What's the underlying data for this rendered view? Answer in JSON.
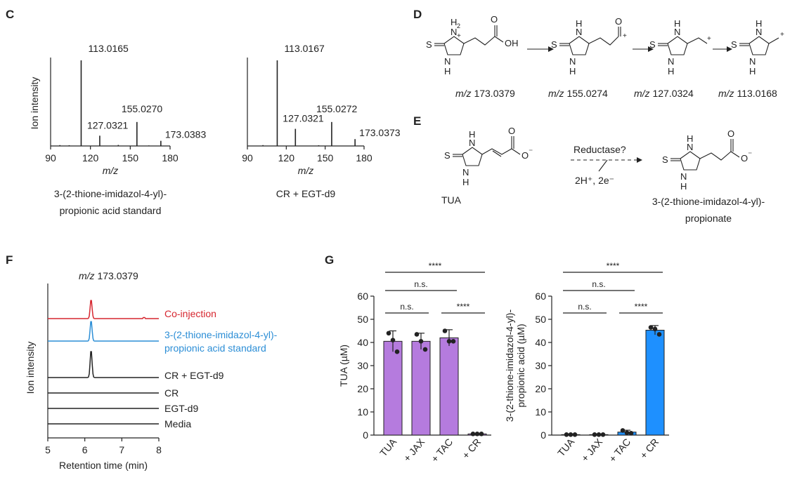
{
  "panels": {
    "C": "C",
    "D": "D",
    "E": "E",
    "F": "F",
    "G": "G"
  },
  "colors": {
    "red": "#d6262f",
    "blue": "#2c8ed6",
    "purple": "#b57bde",
    "bright_blue": "#1e90ff",
    "black": "#222222"
  },
  "chart_data": [
    {
      "type": "bar",
      "id": "spectrum-standard",
      "ylabel": "Ion intensity",
      "xlabel": "m/z",
      "xlim": [
        90,
        180
      ],
      "xticks": [
        90,
        120,
        150,
        180
      ],
      "caption": [
        "3-(2-thione-imidazol-4-yl)-",
        "propionic acid standard"
      ],
      "peaks": [
        {
          "x": 113.0165,
          "y": 1.0,
          "label": "113.0165"
        },
        {
          "x": 127.0321,
          "y": 0.12,
          "label": "127.0321"
        },
        {
          "x": 155.027,
          "y": 0.28,
          "label": "155.0270"
        },
        {
          "x": 173.0383,
          "y": 0.06,
          "label": "173.0383"
        },
        {
          "x": 97,
          "y": 0.01,
          "label": ""
        },
        {
          "x": 104,
          "y": 0.008,
          "label": ""
        },
        {
          "x": 141,
          "y": 0.012,
          "label": ""
        },
        {
          "x": 164,
          "y": 0.006,
          "label": ""
        }
      ]
    },
    {
      "type": "bar",
      "id": "spectrum-cr",
      "ylabel": "",
      "xlabel": "m/z",
      "xlim": [
        90,
        180
      ],
      "xticks": [
        90,
        120,
        150,
        180
      ],
      "caption": [
        "CR + EGT-d9"
      ],
      "peaks": [
        {
          "x": 113.0167,
          "y": 1.0,
          "label": "113.0167"
        },
        {
          "x": 127.0321,
          "y": 0.2,
          "label": "127.0321"
        },
        {
          "x": 155.0272,
          "y": 0.28,
          "label": "155.0272"
        },
        {
          "x": 173.0373,
          "y": 0.08,
          "label": "173.0373"
        },
        {
          "x": 102,
          "y": 0.01,
          "label": ""
        },
        {
          "x": 145,
          "y": 0.008,
          "label": ""
        }
      ]
    },
    {
      "type": "line",
      "id": "chromatogram",
      "title": "m/z 173.0379",
      "ylabel": "Ion intensity",
      "xlabel": "Retention time (min)",
      "xlim": [
        5,
        8
      ],
      "xticks": [
        5,
        6,
        7,
        8
      ],
      "traces": [
        {
          "name": "Co-injection",
          "color": "#d6262f",
          "peak_rt": 6.17,
          "peak_height": 0.7
        },
        {
          "name": "3-(2-thione-imidazol-4-yl)-\npropionic acid standard",
          "color": "#2c8ed6",
          "peak_rt": 6.17,
          "peak_height": 0.75
        },
        {
          "name": "CR + EGT-d9",
          "color": "#222222",
          "peak_rt": 6.17,
          "peak_height": 1.0
        },
        {
          "name": "CR",
          "color": "#222222",
          "peak_rt": null,
          "peak_height": 0
        },
        {
          "name": "EGT-d9",
          "color": "#222222",
          "peak_rt": null,
          "peak_height": 0
        },
        {
          "name": "Media",
          "color": "#222222",
          "peak_rt": null,
          "peak_height": 0
        }
      ]
    },
    {
      "type": "bar",
      "id": "tua-bar",
      "ylabel": "TUA (µM)",
      "ylim": [
        0,
        60
      ],
      "yticks": [
        0,
        10,
        20,
        30,
        40,
        50,
        60
      ],
      "categories": [
        "TUA",
        "+ JAX",
        "+ TAC",
        "+ CR"
      ],
      "values": [
        40.5,
        40.5,
        42.0,
        0.5
      ],
      "errors": [
        4.5,
        3.5,
        3.5,
        0.2
      ],
      "points": [
        [
          44,
          41,
          36
        ],
        [
          43.5,
          40.5,
          37
        ],
        [
          45,
          40.5,
          40.5
        ],
        [
          0.5,
          0.5,
          0.5
        ]
      ],
      "color": "#b57bde",
      "significance": [
        {
          "from": 0,
          "to": 3,
          "label": "****"
        },
        {
          "from": 0,
          "to": 2,
          "label": "n.s."
        },
        {
          "from": 0,
          "to": 1,
          "label": "n.s."
        },
        {
          "from": 2,
          "to": 3,
          "label": "****"
        }
      ]
    },
    {
      "type": "bar",
      "id": "propionic-bar",
      "ylabel": "3-(2-thione-imidazol-4-yl)-\npropionic acid (µM)",
      "ylim": [
        0,
        60
      ],
      "yticks": [
        0,
        10,
        20,
        30,
        40,
        50,
        60
      ],
      "categories": [
        "TUA",
        "+ JAX",
        "+ TAC",
        "+ CR"
      ],
      "values": [
        0.2,
        0.2,
        1.3,
        45.3
      ],
      "errors": [
        0.1,
        0.1,
        0.8,
        2.0
      ],
      "points": [
        [
          0.2,
          0.2,
          0.2
        ],
        [
          0.2,
          0.2,
          0.2
        ],
        [
          2.0,
          1.0,
          0.8
        ],
        [
          46.5,
          45.8,
          43.5
        ]
      ],
      "color": "#1e90ff",
      "significance": [
        {
          "from": 0,
          "to": 3,
          "label": "****"
        },
        {
          "from": 0,
          "to": 2,
          "label": "n.s."
        },
        {
          "from": 0,
          "to": 1,
          "label": "n.s."
        },
        {
          "from": 2,
          "to": 3,
          "label": "****"
        }
      ]
    }
  ],
  "panel_d": {
    "mz_labels": [
      "173.0379",
      "155.0274",
      "127.0324",
      "113.0168"
    ],
    "mz_prefix": "m/z",
    "atoms": {
      "S": "S",
      "N": "N",
      "H": "H",
      "NH2": "H",
      "OH": "OH",
      "O": "O",
      "plus": "+",
      "two": "2"
    }
  },
  "panel_e": {
    "reactant": "TUA",
    "product": [
      "3-(2-thione-imidazol-4-yl)-",
      "propionate"
    ],
    "arrow_top": "Reductase?",
    "arrow_bottom": "2H⁺, 2e⁻",
    "anion": "⁻"
  }
}
